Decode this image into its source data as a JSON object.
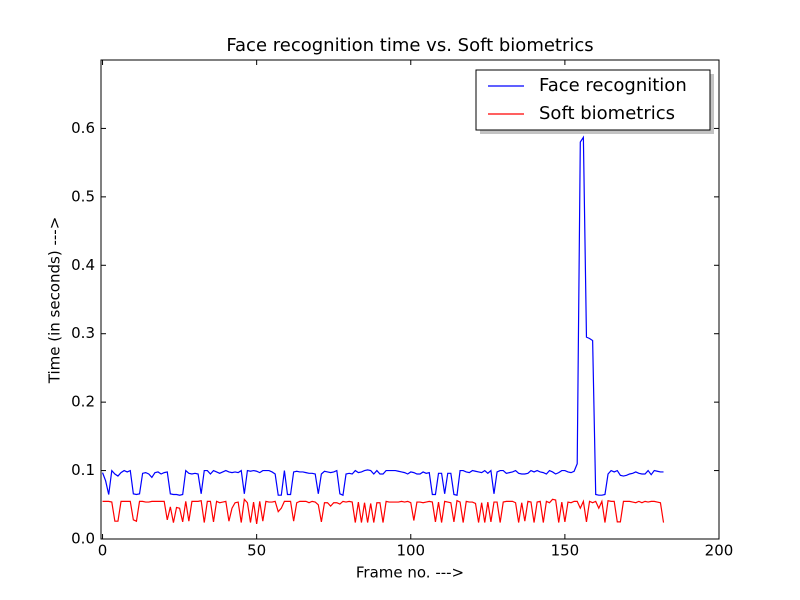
{
  "chart_data": {
    "type": "line",
    "title": "Face recognition time vs. Soft biometrics",
    "x_label": "Frame no. --->",
    "y_label": "Time (in seconds) --->",
    "xlim": [
      -0.5,
      200
    ],
    "ylim": [
      0,
      0.7
    ],
    "xticks": [
      0,
      50,
      100,
      150,
      200
    ],
    "yticks": [
      {
        "value": 0,
        "label": "0.0"
      },
      0.1,
      0.2,
      0.3,
      0.4,
      0.5,
      0.6
    ],
    "legend": "upper right",
    "x": [
      0,
      1,
      2,
      3,
      4,
      5,
      6,
      7,
      8,
      9,
      10,
      11,
      12,
      13,
      14,
      15,
      16,
      17,
      18,
      19,
      20,
      21,
      22,
      23,
      24,
      25,
      26,
      27,
      28,
      29,
      30,
      31,
      32,
      33,
      34,
      35,
      36,
      37,
      38,
      39,
      40,
      41,
      42,
      43,
      44,
      45,
      46,
      47,
      48,
      49,
      50,
      51,
      52,
      53,
      54,
      55,
      56,
      57,
      58,
      59,
      60,
      61,
      62,
      63,
      64,
      65,
      66,
      67,
      68,
      69,
      70,
      71,
      72,
      73,
      74,
      75,
      76,
      77,
      78,
      79,
      80,
      81,
      82,
      83,
      84,
      85,
      86,
      87,
      88,
      89,
      90,
      91,
      92,
      93,
      94,
      95,
      96,
      97,
      98,
      99,
      100,
      101,
      102,
      103,
      104,
      105,
      106,
      107,
      108,
      109,
      110,
      111,
      112,
      113,
      114,
      115,
      116,
      117,
      118,
      119,
      120,
      121,
      122,
      123,
      124,
      125,
      126,
      127,
      128,
      129,
      130,
      131,
      132,
      133,
      134,
      135,
      136,
      137,
      138,
      139,
      140,
      141,
      142,
      143,
      144,
      145,
      146,
      147,
      148,
      149,
      150,
      151,
      152,
      153,
      154,
      155,
      156,
      157,
      158,
      159,
      160,
      161,
      162,
      163,
      164,
      165,
      166,
      167,
      168,
      169,
      170,
      171,
      172,
      173,
      174,
      175,
      176,
      177,
      178,
      179,
      180,
      181,
      182
    ],
    "series": [
      {
        "name": "Face recognition",
        "color": "#0000ff",
        "values": [
          0.097,
          0.085,
          0.065,
          0.1,
          0.095,
          0.092,
          0.097,
          0.1,
          0.098,
          0.1,
          0.066,
          0.065,
          0.066,
          0.096,
          0.097,
          0.095,
          0.09,
          0.097,
          0.098,
          0.095,
          0.097,
          0.098,
          0.066,
          0.065,
          0.065,
          0.064,
          0.065,
          0.1,
          0.096,
          0.095,
          0.096,
          0.095,
          0.066,
          0.1,
          0.1,
          0.095,
          0.1,
          0.098,
          0.096,
          0.098,
          0.1,
          0.098,
          0.097,
          0.098,
          0.097,
          0.1,
          0.066,
          0.1,
          0.099,
          0.1,
          0.099,
          0.097,
          0.1,
          0.1,
          0.1,
          0.098,
          0.095,
          0.064,
          0.064,
          0.1,
          0.065,
          0.065,
          0.098,
          0.099,
          0.098,
          0.098,
          0.097,
          0.096,
          0.096,
          0.095,
          0.066,
          0.095,
          0.099,
          0.098,
          0.097,
          0.098,
          0.1,
          0.066,
          0.064,
          0.095,
          0.096,
          0.095,
          0.1,
          0.097,
          0.098,
          0.1,
          0.101,
          0.1,
          0.095,
          0.1,
          0.095,
          0.095,
          0.1,
          0.1,
          0.1,
          0.1,
          0.099,
          0.098,
          0.097,
          0.095,
          0.098,
          0.097,
          0.095,
          0.095,
          0.098,
          0.096,
          0.097,
          0.065,
          0.065,
          0.096,
          0.096,
          0.066,
          0.096,
          0.096,
          0.065,
          0.064,
          0.1,
          0.1,
          0.098,
          0.097,
          0.1,
          0.099,
          0.098,
          0.097,
          0.1,
          0.096,
          0.1,
          0.066,
          0.098,
          0.1,
          0.1,
          0.096,
          0.097,
          0.098,
          0.1,
          0.096,
          0.095,
          0.095,
          0.096,
          0.1,
          0.098,
          0.1,
          0.098,
          0.097,
          0.095,
          0.1,
          0.098,
          0.095,
          0.097,
          0.1,
          0.1,
          0.098,
          0.097,
          0.099,
          0.11,
          0.58,
          0.587,
          0.295,
          0.293,
          0.29,
          0.065,
          0.064,
          0.064,
          0.065,
          0.095,
          0.1,
          0.098,
          0.1,
          0.093,
          0.092,
          0.093,
          0.095,
          0.096,
          0.098,
          0.096,
          0.095,
          0.095,
          0.1,
          0.094,
          0.1,
          0.099,
          0.098,
          0.098
        ]
      },
      {
        "name": "Soft biometrics",
        "color": "#ff0000",
        "values": [
          0.055,
          0.055,
          0.055,
          0.054,
          0.026,
          0.026,
          0.055,
          0.055,
          0.055,
          0.055,
          0.028,
          0.026,
          0.055,
          0.055,
          0.054,
          0.054,
          0.055,
          0.055,
          0.055,
          0.055,
          0.055,
          0.028,
          0.047,
          0.024,
          0.046,
          0.045,
          0.025,
          0.055,
          0.026,
          0.055,
          0.055,
          0.055,
          0.056,
          0.024,
          0.055,
          0.055,
          0.025,
          0.055,
          0.053,
          0.054,
          0.055,
          0.026,
          0.045,
          0.053,
          0.054,
          0.024,
          0.058,
          0.053,
          0.024,
          0.054,
          0.022,
          0.055,
          0.026,
          0.055,
          0.054,
          0.054,
          0.055,
          0.04,
          0.045,
          0.055,
          0.055,
          0.055,
          0.026,
          0.053,
          0.055,
          0.055,
          0.055,
          0.053,
          0.055,
          0.054,
          0.05,
          0.025,
          0.053,
          0.053,
          0.048,
          0.053,
          0.053,
          0.051,
          0.055,
          0.054,
          0.055,
          0.054,
          0.024,
          0.054,
          0.024,
          0.053,
          0.024,
          0.052,
          0.024,
          0.053,
          0.053,
          0.024,
          0.055,
          0.054,
          0.054,
          0.054,
          0.054,
          0.055,
          0.054,
          0.055,
          0.053,
          0.027,
          0.054,
          0.054,
          0.053,
          0.054,
          0.055,
          0.054,
          0.025,
          0.054,
          0.024,
          0.055,
          0.054,
          0.053,
          0.025,
          0.056,
          0.054,
          0.024,
          0.055,
          0.054,
          0.054,
          0.052,
          0.024,
          0.053,
          0.024,
          0.054,
          0.025,
          0.054,
          0.054,
          0.024,
          0.054,
          0.055,
          0.055,
          0.055,
          0.053,
          0.024,
          0.053,
          0.026,
          0.055,
          0.054,
          0.024,
          0.054,
          0.055,
          0.024,
          0.055,
          0.053,
          0.058,
          0.057,
          0.024,
          0.054,
          0.025,
          0.054,
          0.053,
          0.055,
          0.055,
          0.045,
          0.055,
          0.025,
          0.055,
          0.053,
          0.055,
          0.045,
          0.055,
          0.024,
          0.056,
          0.055,
          0.055,
          0.025,
          0.025,
          0.055,
          0.055,
          0.055,
          0.054,
          0.053,
          0.055,
          0.053,
          0.055,
          0.054,
          0.055,
          0.055,
          0.054,
          0.053,
          0.024
        ]
      }
    ]
  }
}
